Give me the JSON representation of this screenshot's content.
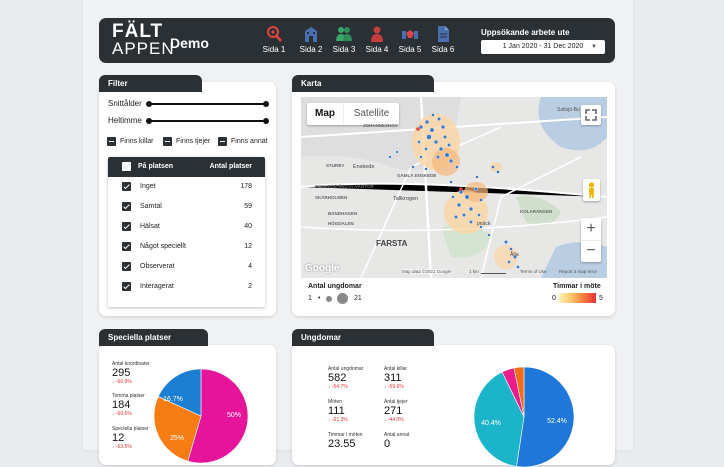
{
  "header": {
    "logo_line1": "FÄLT",
    "logo_line2": "APPEN",
    "title": "Demo",
    "nav": [
      {
        "label": "Sida 1",
        "icon": "search-location-icon",
        "color": "#e0463f"
      },
      {
        "label": "Sida 2",
        "icon": "building-icon",
        "color": "#4a6fb0"
      },
      {
        "label": "Sida 3",
        "icon": "users-icon",
        "color": "#3aa66a"
      },
      {
        "label": "Sida 4",
        "icon": "person-icon",
        "color": "#c63d3d"
      },
      {
        "label": "Sida 5",
        "icon": "handshake-icon",
        "color": "#d64848"
      },
      {
        "label": "Sida 6",
        "icon": "document-icon",
        "color": "#4a6fb0"
      }
    ],
    "period_title": "Uppsökande arbete ute",
    "period_value": "1 Jan 2020 - 31 Dec 2020"
  },
  "filter": {
    "title": "Filter",
    "slider1": "Snittålder",
    "slider2": "Heltimme",
    "checks": [
      "Finns killar",
      "Finns tjejer",
      "Finns annat"
    ],
    "table_header_name": "På platsen",
    "table_header_value": "Antal platser",
    "rows": [
      {
        "name": "Inget",
        "value": "178"
      },
      {
        "name": "Samtal",
        "value": "59"
      },
      {
        "name": "Hälsat",
        "value": "40"
      },
      {
        "name": "Något speciellt",
        "value": "12"
      },
      {
        "name": "Observerat",
        "value": "4"
      },
      {
        "name": "Interagerat",
        "value": "2"
      }
    ]
  },
  "map": {
    "title": "Karta",
    "tab_map": "Map",
    "tab_satellite": "Satellite",
    "places": [
      "Saltsjö-Bo",
      "JOHANNESHOV",
      "SKÄRHOLMEN",
      "STURBY",
      "Enskede",
      "HÄGERSTEN",
      "GAMLA ENSKEDE",
      "ENSKEDE-ÅRSTA-VANTÖR",
      "SKARPNÄCK",
      "Tallkrogen",
      "BANDHAGEN",
      "HÖGDALEN",
      "KOLARÄNGEN",
      "FARSTA",
      "Ålta",
      "pnäck"
    ],
    "footer": "Map data ©2021 Google",
    "scale": "1 km",
    "terms": "Terms of Use",
    "report": "Report a map error",
    "google": "Google",
    "legend_size_title": "Antal ungdomar",
    "legend_size_min": "1",
    "legend_size_max": "21",
    "legend_color_title": "Timmar i möte",
    "legend_color_min": "0",
    "legend_color_max": "5"
  },
  "special": {
    "title": "Speciella platser",
    "stats": [
      {
        "label": "Antal koordinater",
        "value": "295",
        "change": "↓ -60.9%"
      },
      {
        "label": "Tomma platser",
        "value": "184",
        "change": "↓ -60.6%"
      },
      {
        "label": "Speciella platser",
        "value": "12",
        "change": "↓ -63.5%"
      }
    ],
    "pie_labels": [
      "50%",
      "25%",
      "16.7%"
    ]
  },
  "youth": {
    "title": "Ungdomar",
    "stats": [
      {
        "label": "Antal ungdomar",
        "value": "582",
        "change": "↓ -54.7%"
      },
      {
        "label": "Antal killar",
        "value": "311",
        "change": "↓ -59.6%"
      },
      {
        "label": "Möten",
        "value": "111",
        "change": "↓ -61.3%"
      },
      {
        "label": "Antal tjejer",
        "value": "271",
        "change": "↓ -44.0%"
      },
      {
        "label": "Timmar i möten",
        "value": "23.55",
        "change": ""
      },
      {
        "label": "Antal annat",
        "value": "0",
        "change": ""
      }
    ],
    "pie_labels": [
      "52.4%",
      "40.4%"
    ]
  },
  "chart_data": [
    {
      "type": "pie",
      "title": "",
      "categories": [
        "",
        "",
        ""
      ],
      "values": [
        50,
        25,
        16.7
      ],
      "colors": [
        "#e6149a",
        "#f77d12",
        "#1b7fd4"
      ]
    },
    {
      "type": "pie",
      "title": "",
      "categories": [
        "",
        "",
        "",
        ""
      ],
      "values": [
        52.4,
        40.4,
        4.0,
        3.2
      ],
      "colors": [
        "#1f78d9",
        "#1bb4c9",
        "#ec1c8c",
        "#f26d18"
      ]
    }
  ]
}
